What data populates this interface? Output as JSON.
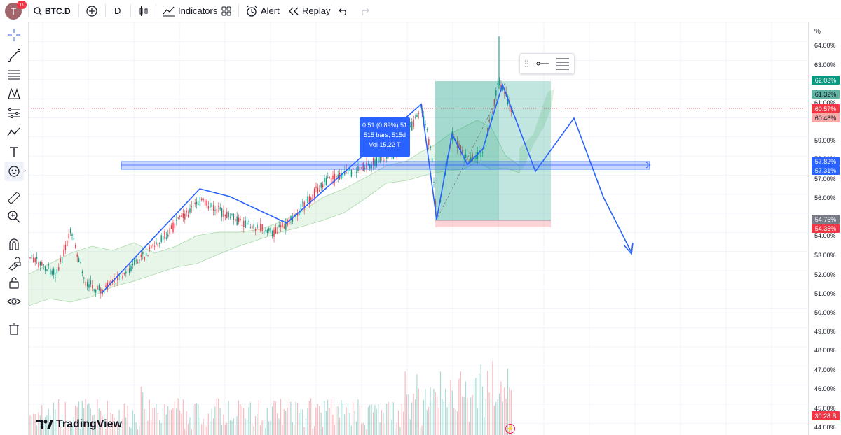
{
  "topbar": {
    "avatar_letter": "T",
    "notification_count": "11",
    "symbol": "BTC.D",
    "interval": "D",
    "indicators_label": "Indicators",
    "alert_label": "Alert",
    "replay_label": "Replay"
  },
  "left_tools": [
    "crosshair-icon",
    "trend-line-icon",
    "horizontal-lines-icon",
    "pattern-icon",
    "fib-icon",
    "projection-icon",
    "text-icon",
    "emoji-icon",
    "ruler-icon",
    "zoom-icon",
    "magnet-icon",
    "lock-drawings-icon",
    "unlock-icon",
    "eye-icon",
    "trash-icon"
  ],
  "price_axis": {
    "unit": "%",
    "labels": [
      "64.00%",
      "63.00%",
      "61.00%",
      "59.00%",
      "58.00%",
      "57.00%",
      "56.00%",
      "55.00%",
      "54.00%",
      "53.00%",
      "52.00%",
      "51.00%",
      "50.00%",
      "49.00%",
      "48.00%",
      "47.00%",
      "46.00%",
      "45.00%",
      "44.00%"
    ],
    "tags": [
      {
        "text": "62.03%",
        "color": "#089981"
      },
      {
        "text": "61.32%",
        "color": "#5fb3a3",
        "dark": true
      },
      {
        "text": "60.57%",
        "color": "#f23645"
      },
      {
        "text": "60.48%",
        "color": "#f7a9a7",
        "dark": true
      },
      {
        "text": "57.82%",
        "color": "#2962ff"
      },
      {
        "text": "57.31%",
        "color": "#2962ff"
      },
      {
        "text": "54.75%",
        "color": "#787b86"
      },
      {
        "text": "54.35%",
        "color": "#f23645"
      },
      {
        "text": "30.28 B",
        "color": "#f23645"
      }
    ]
  },
  "measure_tooltip": {
    "line1": "0.51 (0.89%) 51",
    "line2": "515 bars, 515d",
    "line3": "Vol 15.22 T"
  },
  "brand": "TradingView",
  "colors": {
    "accent": "#2962ff",
    "up": "#089981",
    "down": "#f23645"
  }
}
